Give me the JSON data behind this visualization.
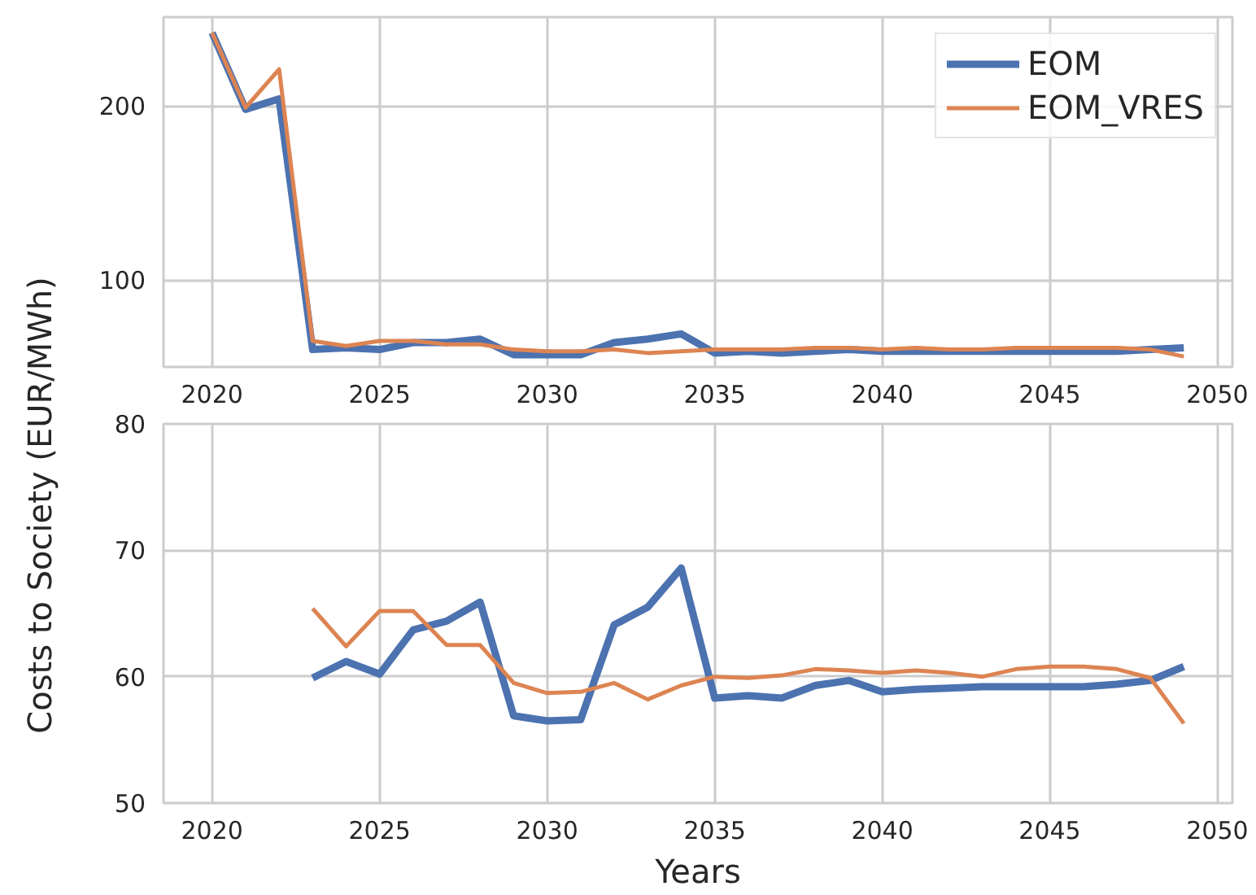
{
  "chart_data": [
    {
      "type": "line",
      "x": [
        2020,
        2021,
        2022,
        2023,
        2024,
        2025,
        2026,
        2027,
        2028,
        2029,
        2030,
        2031,
        2032,
        2033,
        2034,
        2035,
        2036,
        2037,
        2038,
        2039,
        2040,
        2041,
        2042,
        2043,
        2044,
        2045,
        2046,
        2047,
        2048,
        2049
      ],
      "series": [
        {
          "name": "EOM",
          "color": "#4c72b0",
          "values": [
            242,
            198,
            204,
            60,
            61,
            60,
            64,
            64,
            66,
            57,
            57,
            57,
            64,
            66,
            69,
            58,
            59,
            58,
            59,
            60,
            59,
            59,
            59,
            59,
            59,
            59,
            59,
            59,
            60,
            61
          ]
        },
        {
          "name": "EOM_VRES",
          "color": "#dd8452",
          "values": [
            242,
            199,
            221,
            65,
            62,
            65,
            65,
            63,
            63,
            60,
            59,
            59,
            60,
            58,
            59,
            60,
            60,
            60,
            61,
            61,
            60,
            61,
            60,
            60,
            61,
            61,
            61,
            61,
            60,
            56
          ]
        }
      ],
      "xlim": [
        2018.55,
        2050.45
      ],
      "xticks": [
        2020,
        2025,
        2030,
        2035,
        2040,
        2045,
        2050
      ],
      "ylim": [
        50,
        251
      ],
      "yticks": [
        100,
        200
      ],
      "grid": true,
      "legend": "top right"
    },
    {
      "type": "line",
      "x": [
        2023,
        2024,
        2025,
        2026,
        2027,
        2028,
        2029,
        2030,
        2031,
        2032,
        2033,
        2034,
        2035,
        2036,
        2037,
        2038,
        2039,
        2040,
        2041,
        2042,
        2043,
        2044,
        2045,
        2046,
        2047,
        2048,
        2049
      ],
      "series": [
        {
          "color": "#4c72b0",
          "values": [
            59.9,
            61.2,
            60.2,
            63.7,
            64.4,
            65.9,
            56.9,
            56.5,
            56.6,
            64.1,
            65.5,
            68.6,
            58.3,
            58.5,
            58.3,
            59.3,
            59.7,
            58.8,
            59.0,
            59.1,
            59.2,
            59.2,
            59.2,
            59.2,
            59.4,
            59.7,
            60.8
          ]
        },
        {
          "color": "#dd8452",
          "values": [
            65.4,
            62.4,
            65.2,
            65.2,
            62.5,
            62.5,
            59.5,
            58.7,
            58.8,
            59.5,
            58.2,
            59.3,
            60.0,
            59.9,
            60.1,
            60.6,
            60.5,
            60.3,
            60.5,
            60.3,
            60.0,
            60.6,
            60.8,
            60.8,
            60.6,
            59.9,
            56.3
          ]
        }
      ],
      "xlabel": "Years",
      "ylabel": "Costs to Society (EUR/MWh)",
      "xlim": [
        2018.55,
        2050.45
      ],
      "xticks": [
        2020,
        2025,
        2030,
        2035,
        2040,
        2045,
        2050
      ],
      "ylim": [
        50,
        80
      ],
      "yticks": [
        50,
        60,
        70,
        80
      ],
      "grid": true
    }
  ]
}
